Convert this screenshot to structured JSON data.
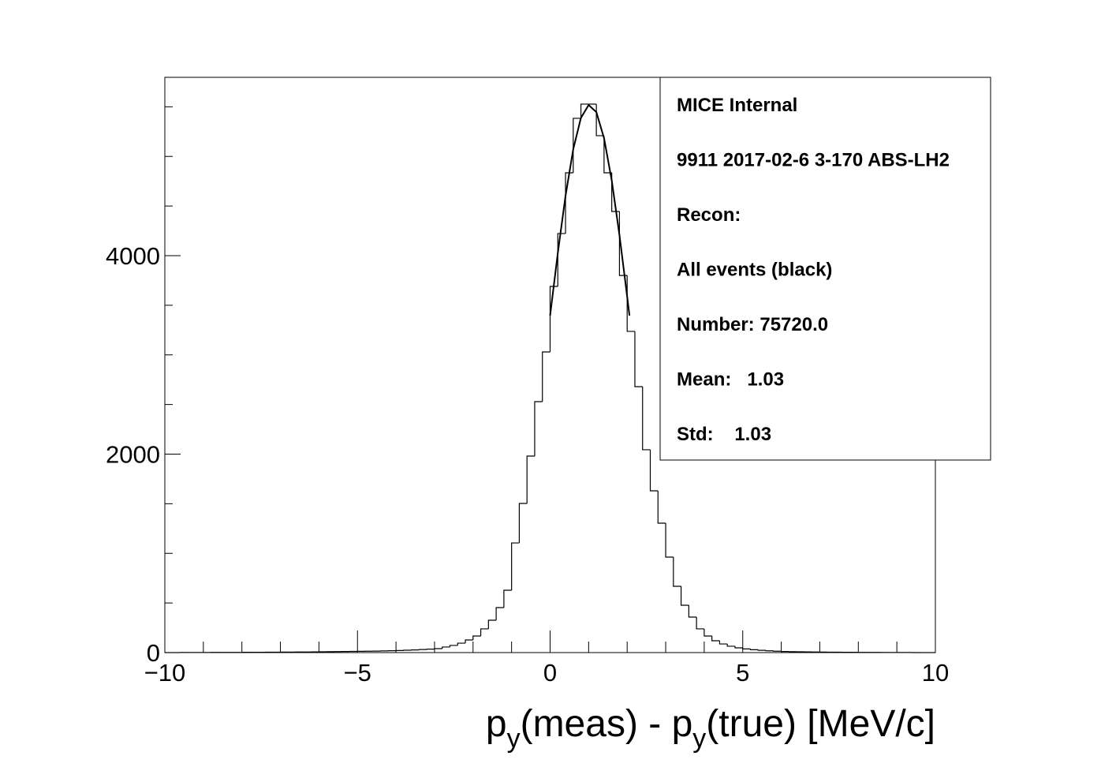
{
  "chart_data": {
    "type": "histogram",
    "bins": [
      -10,
      -9.8,
      -9.6,
      -9.4,
      -9.2,
      -9,
      -8.8,
      -8.6,
      -8.4,
      -8.2,
      -8,
      -7.8,
      -7.6,
      -7.4,
      -7.2,
      -7,
      -6.8,
      -6.6,
      -6.4,
      -6.2,
      -6,
      -5.8,
      -5.6,
      -5.4,
      -5.2,
      -5,
      -4.8,
      -4.6,
      -4.4,
      -4.2,
      -4,
      -3.8,
      -3.6,
      -3.4,
      -3.2,
      -3,
      -2.8,
      -2.6,
      -2.4,
      -2.2,
      -2,
      -1.8,
      -1.6,
      -1.4,
      -1.2,
      -1,
      -0.8,
      -0.6,
      -0.4,
      -0.2,
      0,
      0.2,
      0.4,
      0.6,
      0.8,
      1,
      1.2,
      1.4,
      1.6,
      1.8,
      2,
      2.2,
      2.4,
      2.6,
      2.8,
      3,
      3.2,
      3.4,
      3.6,
      3.8,
      4,
      4.2,
      4.4,
      4.6,
      4.8,
      5,
      5.2,
      5.4,
      5.6,
      5.8,
      6,
      6.2,
      6.4,
      6.6,
      6.8,
      7,
      7.2,
      7.4,
      7.6,
      7.8,
      8,
      8.2,
      8.4,
      8.6,
      8.8,
      9,
      9.2,
      9.4,
      9.6,
      9.8,
      10
    ],
    "values": [
      0,
      0,
      1,
      1,
      1,
      1,
      2,
      2,
      2,
      2,
      3,
      3,
      3,
      4,
      4,
      5,
      5,
      6,
      6,
      7,
      8,
      9,
      10,
      11,
      12,
      13,
      14,
      15,
      17,
      19,
      21,
      24,
      27,
      31,
      35,
      40,
      56,
      72,
      95,
      127,
      167,
      239,
      326,
      453,
      628,
      1105,
      1503,
      1980,
      2529,
      3030,
      3690,
      4223,
      4835,
      5384,
      5527,
      5527,
      5209,
      4835,
      4445,
      3800,
      3237,
      2680,
      2044,
      1630,
      1304,
      962,
      668,
      477,
      358,
      239,
      167,
      119,
      87,
      64,
      48,
      37,
      29,
      23,
      18,
      14,
      11,
      9,
      8,
      7,
      6,
      5,
      4,
      4,
      3,
      3,
      2,
      2,
      2,
      1,
      1,
      1,
      1,
      0,
      0,
      0
    ],
    "color": "#000000",
    "fit": {
      "x": [
        0,
        0.2,
        0.4,
        0.6,
        0.8,
        1,
        1.2,
        1.4,
        1.6,
        1.8,
        2,
        2.06
      ],
      "values": [
        3396,
        4027,
        4602,
        5072,
        5388,
        5518,
        5447,
        5184,
        4757,
        4207,
        3588,
        3396
      ]
    },
    "xlim": [
      -10,
      10
    ],
    "ylim": [
      0,
      5797
    ],
    "xticks": [
      {
        "value": -10,
        "label": "−10"
      },
      {
        "value": -5,
        "label": "−5"
      },
      0,
      5,
      10
    ],
    "xticks_minor": [
      -9,
      -8,
      -7,
      -6,
      -4,
      -3,
      -2,
      -1,
      1,
      2,
      3,
      4,
      6,
      7,
      8,
      9
    ],
    "yticks": [
      0,
      2000,
      4000
    ],
    "yticks_minor": [
      500,
      1000,
      1500,
      2500,
      3000,
      3500,
      4500,
      5000,
      5500
    ],
    "x_label": [
      "p",
      "y",
      "(meas) - p",
      "y",
      "(true) [MeV/c]"
    ],
    "stats": [
      "MICE Internal",
      "9911 2017-02-6 3-170 ABS-LH2",
      "Recon:",
      "All events (black)",
      "Number: 75720.0",
      "Mean:   1.03",
      "Std:    1.03"
    ]
  }
}
